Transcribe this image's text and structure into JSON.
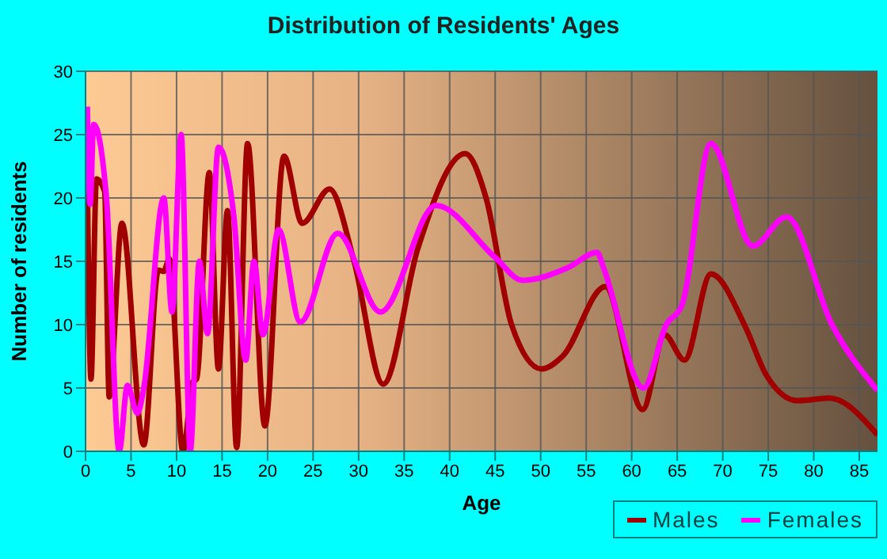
{
  "chart_data": {
    "type": "line",
    "title": "Distribution of Residents' Ages",
    "xlabel": "Age",
    "ylabel": "Number of residents",
    "xlim": [
      0,
      87
    ],
    "xticks": [
      0,
      5,
      10,
      15,
      20,
      25,
      30,
      35,
      40,
      45,
      50,
      55,
      60,
      65,
      70,
      75,
      80,
      85
    ],
    "ylim": [
      0,
      30
    ],
    "yticks": [
      0,
      5,
      10,
      15,
      20,
      25,
      30
    ],
    "grid": true,
    "legend": "bottom right",
    "marker": "none",
    "line_style": "solid",
    "series": [
      {
        "name": "Males",
        "color": "#a00000",
        "x": [
          0.2,
          0.6,
          1.2,
          2.1,
          2.6,
          4,
          6.4,
          8,
          8.6,
          9.2,
          10.7,
          11.8,
          12.2,
          13.6,
          14.6,
          15.6,
          16.6,
          17.8,
          19.7,
          21.8,
          23.8,
          26.8,
          29.5,
          32.7,
          36.5,
          41.7,
          44,
          46.8,
          50.1,
          52.4,
          57.1,
          61.2,
          63.6,
          65.8,
          68.7,
          72.5,
          74.8,
          78.2,
          81.7,
          87
        ],
        "values": [
          21.3,
          5.7,
          21.5,
          20.5,
          4.3,
          18,
          0.5,
          14.3,
          14.2,
          15.2,
          0,
          5.5,
          5.7,
          22,
          6.5,
          19,
          0.3,
          24.3,
          2,
          23.3,
          18,
          20.7,
          15,
          5.3,
          16,
          23.5,
          20,
          10,
          6.5,
          7.5,
          13,
          3.3,
          9.2,
          7.2,
          14,
          9.8,
          6,
          4,
          4.2,
          1.3
        ]
      },
      {
        "name": "Females",
        "color": "#ff00ff",
        "x": [
          0.2,
          0.5,
          0.9,
          2.3,
          3.7,
          4.6,
          5.7,
          6.4,
          8.6,
          9.5,
          10.5,
          11.5,
          12.5,
          13.4,
          14.6,
          16.3,
          17.6,
          18.5,
          19.5,
          21.2,
          23.6,
          27.7,
          32.4,
          38.5,
          45,
          48,
          53,
          56.2,
          56.9,
          61.3,
          63.8,
          65.5,
          68.7,
          73.3,
          77,
          82,
          87
        ],
        "values": [
          27.2,
          19.5,
          25.8,
          20,
          0,
          5.2,
          3,
          5,
          20,
          11,
          25,
          0,
          15,
          9.3,
          24,
          18.5,
          7.2,
          15,
          9.2,
          17.5,
          10.2,
          17.2,
          11,
          19.4,
          15.3,
          13.5,
          14.5,
          15.7,
          14.5,
          5,
          10,
          11.5,
          24.3,
          16.2,
          18.5,
          10,
          4.8
        ]
      }
    ]
  }
}
